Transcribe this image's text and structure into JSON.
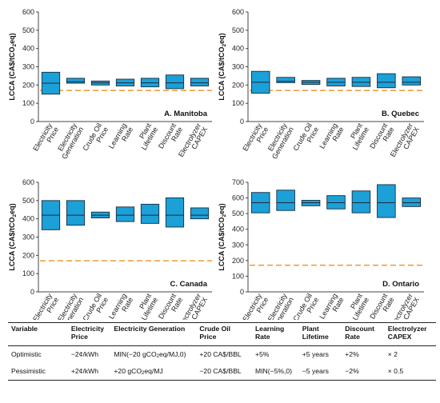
{
  "ylabel_html": "LCCA (CA$/tCO<sub>2</sub>eq)",
  "styles": {
    "box_fill": "#1ca0d8",
    "box_stroke": "#1b2b3a",
    "ref_line": "#f0a040",
    "axis": "#444444"
  },
  "chart_data": [
    {
      "type": "box",
      "title": "A. Manitoba",
      "ylim": [
        0,
        600
      ],
      "yticks": [
        0,
        100,
        200,
        300,
        400,
        500,
        600
      ],
      "reference_line": 170,
      "categories": [
        "Electricity Price",
        "Electricity Generation",
        "Crude Oil Price",
        "Learning Rate",
        "Plant Lifetime",
        "Discount Rate",
        "Electrolyzer CAPEX"
      ],
      "low": [
        150,
        210,
        200,
        195,
        190,
        180,
        195
      ],
      "mid": [
        210,
        218,
        212,
        212,
        212,
        212,
        212
      ],
      "high": [
        270,
        237,
        222,
        232,
        237,
        255,
        237
      ]
    },
    {
      "type": "box",
      "title": "B. Quebec",
      "ylim": [
        0,
        600
      ],
      "yticks": [
        0,
        100,
        200,
        300,
        400,
        500,
        600
      ],
      "reference_line": 170,
      "categories": [
        "Electricity Price",
        "Electricity Generation",
        "Crude Oil Price",
        "Learning Rate",
        "Plant Lifetime",
        "Discount Rate",
        "Electrolyzer CAPEX"
      ],
      "low": [
        155,
        213,
        203,
        195,
        192,
        185,
        200
      ],
      "mid": [
        215,
        220,
        215,
        215,
        215,
        215,
        215
      ],
      "high": [
        275,
        242,
        225,
        237,
        242,
        262,
        245
      ]
    },
    {
      "type": "box",
      "title": "C. Canada",
      "ylim": [
        0,
        600
      ],
      "yticks": [
        0,
        100,
        200,
        300,
        400,
        500,
        600
      ],
      "reference_line": 170,
      "categories": [
        "Electricity Price",
        "Electricity Generation",
        "Crude Oil Price",
        "Learning Rate",
        "Plant Lifetime",
        "Discount Rate",
        "Electrolyzer CAPEX"
      ],
      "low": [
        340,
        365,
        405,
        385,
        375,
        355,
        400
      ],
      "mid": [
        420,
        420,
        420,
        420,
        420,
        420,
        420
      ],
      "high": [
        500,
        500,
        437,
        465,
        480,
        515,
        460
      ]
    },
    {
      "type": "box",
      "title": "D. Ontario",
      "ylim": [
        0,
        700
      ],
      "yticks": [
        0,
        100,
        200,
        300,
        400,
        500,
        600,
        700
      ],
      "reference_line": 170,
      "categories": [
        "Electricity Price",
        "Electricity Generation",
        "Crude Oil Price",
        "Learning Rate",
        "Plant Lifetime",
        "Discount Rate",
        "Electrolyzer CAPEX"
      ],
      "low": [
        505,
        520,
        550,
        530,
        505,
        475,
        545
      ],
      "mid": [
        570,
        570,
        570,
        570,
        570,
        570,
        570
      ],
      "high": [
        635,
        650,
        585,
        615,
        645,
        685,
        600
      ]
    }
  ],
  "table": {
    "headers": [
      "Variable",
      "Electricity Price",
      "Electricity Generation",
      "Crude Oil Price",
      "Learning Rate",
      "Plant Lifetime",
      "Discount Rate",
      "Electrolyzer CAPEX"
    ],
    "rows": [
      [
        "Optimistic",
        "−2¢/kWh",
        "MIN(−20 gCO<sub>2</sub>eq/MJ,0)",
        "+20 CA$/BBL",
        "+5%",
        "+5 years",
        "+2%",
        "× 2"
      ],
      [
        "Pessimistic",
        "+2¢/kWh",
        "+20 gCO<sub>2</sub>eq/MJ",
        "−20 CA$/BBL",
        "MIN(−5%,0)",
        "−5 years",
        "−2%",
        "× 0.5"
      ]
    ]
  }
}
